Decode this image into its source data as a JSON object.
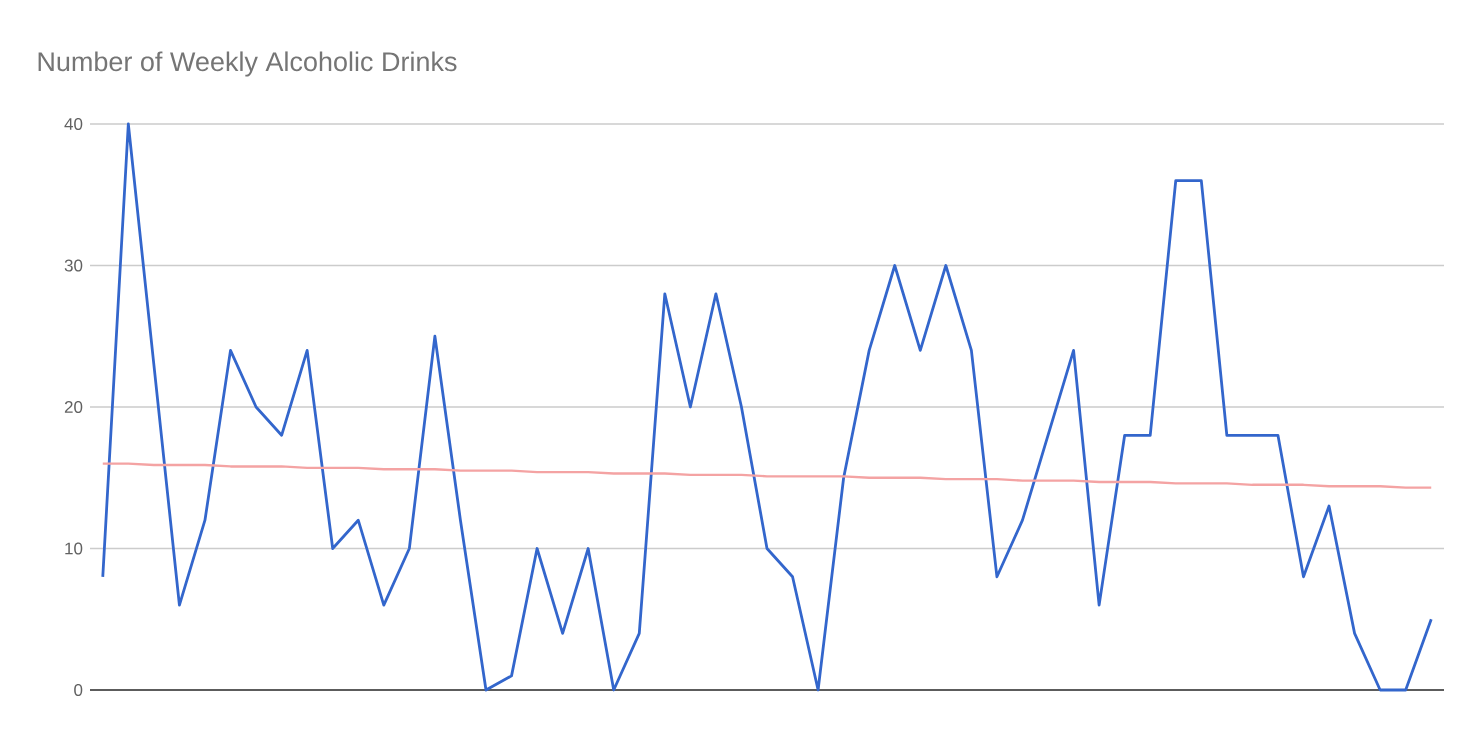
{
  "chart_data": {
    "type": "line",
    "title": "Number of Weekly Alcoholic Drinks",
    "categories": [
      null,
      null,
      null,
      null,
      null,
      null,
      null,
      null,
      null,
      null,
      null,
      null,
      null,
      null,
      null,
      null,
      null,
      null,
      null,
      null,
      null,
      null,
      null,
      null,
      null,
      null,
      null,
      null,
      null,
      null,
      null,
      null,
      null,
      null,
      null,
      null,
      null,
      null,
      null,
      null,
      null,
      null,
      null,
      null,
      null,
      null,
      null,
      null,
      null,
      null,
      null,
      null,
      null
    ],
    "series": [
      {
        "color": "#3366cc",
        "values": [
          8,
          40,
          23,
          6,
          12,
          24,
          20,
          18,
          24,
          10,
          12,
          6,
          10,
          25,
          12,
          0,
          1,
          10,
          4,
          10,
          0,
          4,
          28,
          20,
          28,
          20,
          10,
          8,
          0,
          15,
          24,
          30,
          24,
          30,
          24,
          8,
          12,
          18,
          24,
          6,
          18,
          18,
          36,
          36,
          18,
          18,
          18,
          8,
          13,
          4,
          0,
          0,
          5
        ]
      },
      {
        "type": "line",
        "color": "#f4a3a3",
        "values": [
          16.0,
          16.0,
          15.9,
          15.9,
          15.9,
          15.8,
          15.8,
          15.8,
          15.7,
          15.7,
          15.7,
          15.6,
          15.6,
          15.6,
          15.5,
          15.5,
          15.5,
          15.4,
          15.4,
          15.4,
          15.3,
          15.3,
          15.3,
          15.2,
          15.2,
          15.2,
          15.1,
          15.1,
          15.1,
          15.1,
          15.0,
          15.0,
          15.0,
          14.9,
          14.9,
          14.9,
          14.8,
          14.8,
          14.8,
          14.7,
          14.7,
          14.7,
          14.6,
          14.6,
          14.6,
          14.5,
          14.5,
          14.5,
          14.4,
          14.4,
          14.4,
          14.3,
          14.3
        ]
      }
    ],
    "ylim": [
      0,
      40
    ],
    "yticks": [
      0,
      10,
      20,
      30,
      40
    ],
    "grid": "y",
    "tick_labels": "y",
    "marker": "none",
    "line_style": "solid"
  }
}
